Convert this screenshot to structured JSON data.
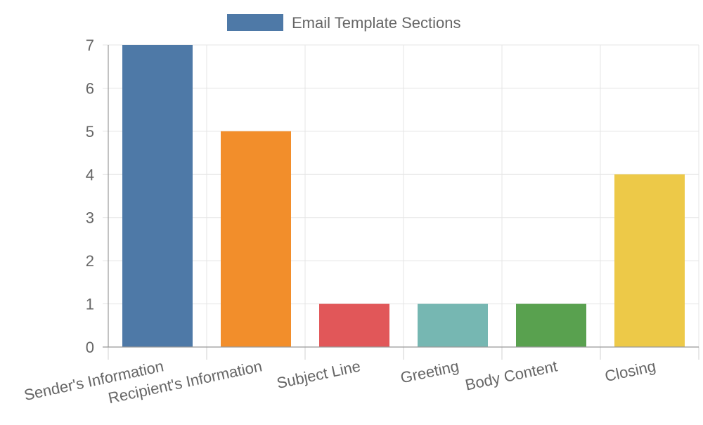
{
  "chart_data": {
    "type": "bar",
    "title": "",
    "xlabel": "",
    "ylabel": "",
    "categories": [
      "Sender's Information",
      "Recipient's Information",
      "Subject Line",
      "Greeting",
      "Body Content",
      "Closing"
    ],
    "series": [
      {
        "name": "Email Template Sections",
        "values": [
          7,
          5,
          1,
          1,
          1,
          4
        ],
        "colors": [
          "#4e79a7",
          "#f28e2b",
          "#e15759",
          "#76b7b2",
          "#59a14f",
          "#edc948"
        ]
      }
    ],
    "ylim": [
      0,
      7
    ],
    "yticks": [
      0,
      1,
      2,
      3,
      4,
      5,
      6,
      7
    ],
    "grid": true,
    "legend_position": "top-center",
    "legend_swatch_color": "#4e79a7"
  }
}
